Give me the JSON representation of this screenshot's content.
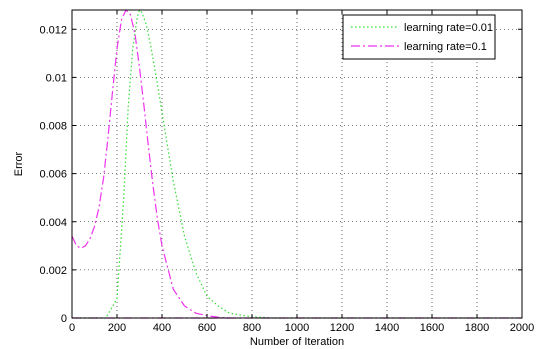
{
  "chart_data": {
    "type": "line",
    "title": "",
    "xlabel": "Number of Iteration",
    "ylabel": "Error",
    "xlim": [
      0,
      2000
    ],
    "ylim": [
      0,
      0.0128
    ],
    "x_ticks": [
      0,
      200,
      400,
      600,
      800,
      1000,
      1200,
      1400,
      1600,
      1800,
      2000
    ],
    "y_ticks": [
      0,
      0.002,
      0.004,
      0.006,
      0.008,
      0.01,
      0.012
    ],
    "y_tick_labels": [
      "0",
      "0.002",
      "0.004",
      "0.006",
      "0.008",
      "0.01",
      "0.012"
    ],
    "grid": true,
    "legend_position": "top-right",
    "series": [
      {
        "name": "learning rate=0.01",
        "color": "#33dd33",
        "style": "dotted",
        "x": [
          0,
          150,
          200,
          230,
          250,
          270,
          290,
          300,
          310,
          330,
          350,
          380,
          420,
          450,
          500,
          550,
          600,
          650,
          700,
          800,
          900,
          1000,
          1200,
          1400,
          1600,
          1800,
          2000
        ],
        "y": [
          0,
          0,
          0.0008,
          0.005,
          0.0088,
          0.0112,
          0.0125,
          0.0128,
          0.0127,
          0.0122,
          0.0113,
          0.0097,
          0.0074,
          0.0057,
          0.0034,
          0.0019,
          0.0009,
          0.0005,
          0.0002,
          5e-05,
          0,
          0,
          0,
          0,
          0,
          0,
          0
        ]
      },
      {
        "name": "learning rate=0.1",
        "color": "#ee33ee",
        "style": "dashdot",
        "x": [
          0,
          20,
          40,
          60,
          80,
          100,
          120,
          140,
          160,
          180,
          200,
          220,
          240,
          260,
          280,
          300,
          320,
          340,
          360,
          380,
          400,
          450,
          500,
          550,
          600,
          650,
          700,
          800,
          1000,
          1200,
          1400,
          1600,
          1800,
          2000
        ],
        "y": [
          0.0034,
          0.003,
          0.0029,
          0.003,
          0.0033,
          0.0038,
          0.0046,
          0.0058,
          0.0075,
          0.0094,
          0.0112,
          0.0124,
          0.0128,
          0.0126,
          0.0118,
          0.0104,
          0.0088,
          0.0071,
          0.0055,
          0.0041,
          0.003,
          0.0012,
          0.0005,
          0.0002,
          0.0001,
          3e-05,
          0,
          0,
          0,
          0,
          0,
          0,
          0,
          0
        ]
      },
      {
        "name": "",
        "color": "#ee33ee",
        "style": "dashdot",
        "x": [
          0,
          200,
          400,
          600,
          700
        ],
        "y": [
          0,
          0,
          0,
          0,
          0
        ]
      }
    ]
  }
}
